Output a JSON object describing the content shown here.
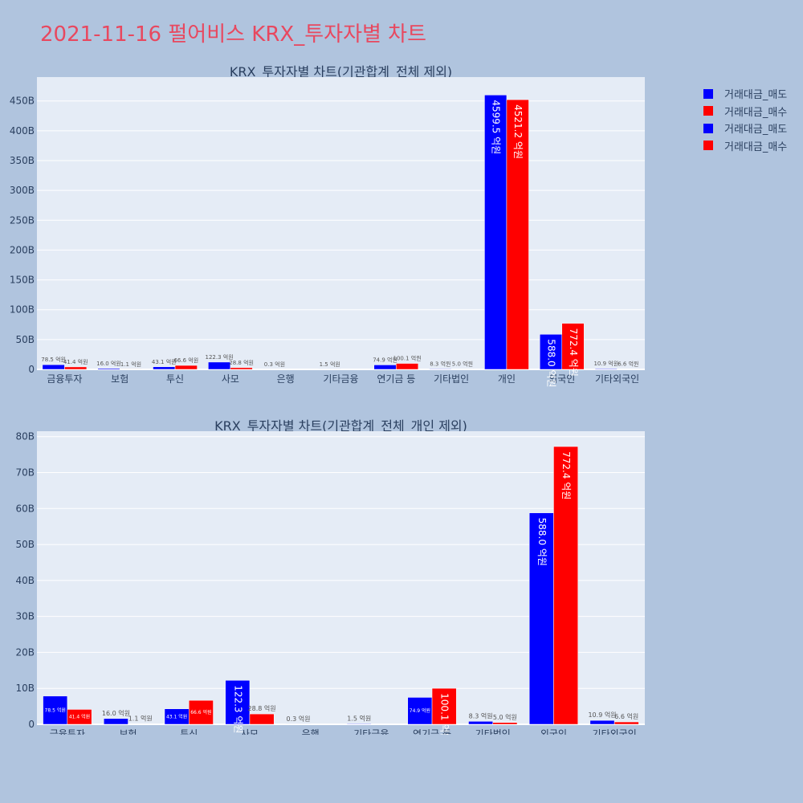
{
  "page": {
    "title": "2021-11-16 펄어비스 KRX_투자자별 차트"
  },
  "legend": {
    "items": [
      {
        "label": "거래대금_매도",
        "color": "#0000ff"
      },
      {
        "label": "거래대금_매수",
        "color": "#ff0000"
      },
      {
        "label": "거래대금_매도",
        "color": "#0000ff"
      },
      {
        "label": "거래대금_매수",
        "color": "#ff0000"
      }
    ]
  },
  "colors": {
    "sell": "#0000ff",
    "buy": "#ff0000",
    "plot_bg": "#e5ecf6",
    "text": "#2a3f5f"
  },
  "chart_data": [
    {
      "type": "bar",
      "title": "KRX_투자자별 차트(기관합계_전체 제외)",
      "categories": [
        "금융투자",
        "보험",
        "투신",
        "사모",
        "은행",
        "기타금융",
        "연기금 등",
        "기타법인",
        "개인",
        "외국인",
        "기타외국인"
      ],
      "series": [
        {
          "name": "거래대금_매도",
          "values": [
            78.5,
            16.0,
            43.1,
            122.3,
            0.3,
            1.5,
            74.9,
            8.3,
            4599.5,
            588.0,
            10.9
          ],
          "labels": [
            "78.5 억원",
            "16.0 억원",
            "43.1 억원",
            "122.3 억원",
            "0.3 억원",
            "1.5 억원",
            "74.9 억원",
            "8.3 억원",
            "4599.5 억원",
            "588.0 억원",
            "10.9 억원"
          ]
        },
        {
          "name": "거래대금_매수",
          "values": [
            41.4,
            1.1,
            66.6,
            28.8,
            0,
            0,
            100.1,
            5.0,
            4521.2,
            772.4,
            6.6
          ],
          "labels": [
            "41.4 억원",
            "1.1 억원",
            "66.6 억원",
            "28.8 억원",
            "",
            "",
            "100.1 억원",
            "5.0 억원",
            "4521.2 억원",
            "772.4 억원",
            "6.6 억원"
          ]
        }
      ],
      "yticks": [
        "0",
        "50B",
        "100B",
        "150B",
        "200B",
        "250B",
        "300B",
        "350B",
        "400B",
        "450B"
      ],
      "ylim": [
        0,
        4900
      ]
    },
    {
      "type": "bar",
      "title": "KRX_투자자별 차트(기관합계_전체_개인 제외)",
      "categories": [
        "금융투자",
        "보험",
        "투신",
        "사모",
        "은행",
        "기타금융",
        "연기금 등",
        "기타법인",
        "외국인",
        "기타외국인"
      ],
      "series": [
        {
          "name": "거래대금_매도",
          "values": [
            78.5,
            16.0,
            43.1,
            122.3,
            0.3,
            1.5,
            74.9,
            8.3,
            588.0,
            10.9
          ],
          "labels": [
            "78.5 억원",
            "16.0 억원",
            "43.1 억원",
            "122.3 억원",
            "0.3 억원",
            "1.5 억원",
            "74.9 억원",
            "8.3 억원",
            "588.0 억원",
            "10.9 억원"
          ]
        },
        {
          "name": "거래대금_매수",
          "values": [
            41.4,
            1.1,
            66.6,
            28.8,
            0,
            0,
            100.1,
            5.0,
            772.4,
            6.6
          ],
          "labels": [
            "41.4 억원",
            "1.1 억원",
            "66.6 억원",
            "28.8 억원",
            "",
            "",
            "100.1 억원",
            "5.0 억원",
            "772.4 억원",
            "6.6 억원"
          ]
        }
      ],
      "yticks": [
        "0",
        "10B",
        "20B",
        "30B",
        "40B",
        "50B",
        "60B",
        "70B",
        "80B"
      ],
      "ylim": [
        0,
        815
      ]
    }
  ]
}
